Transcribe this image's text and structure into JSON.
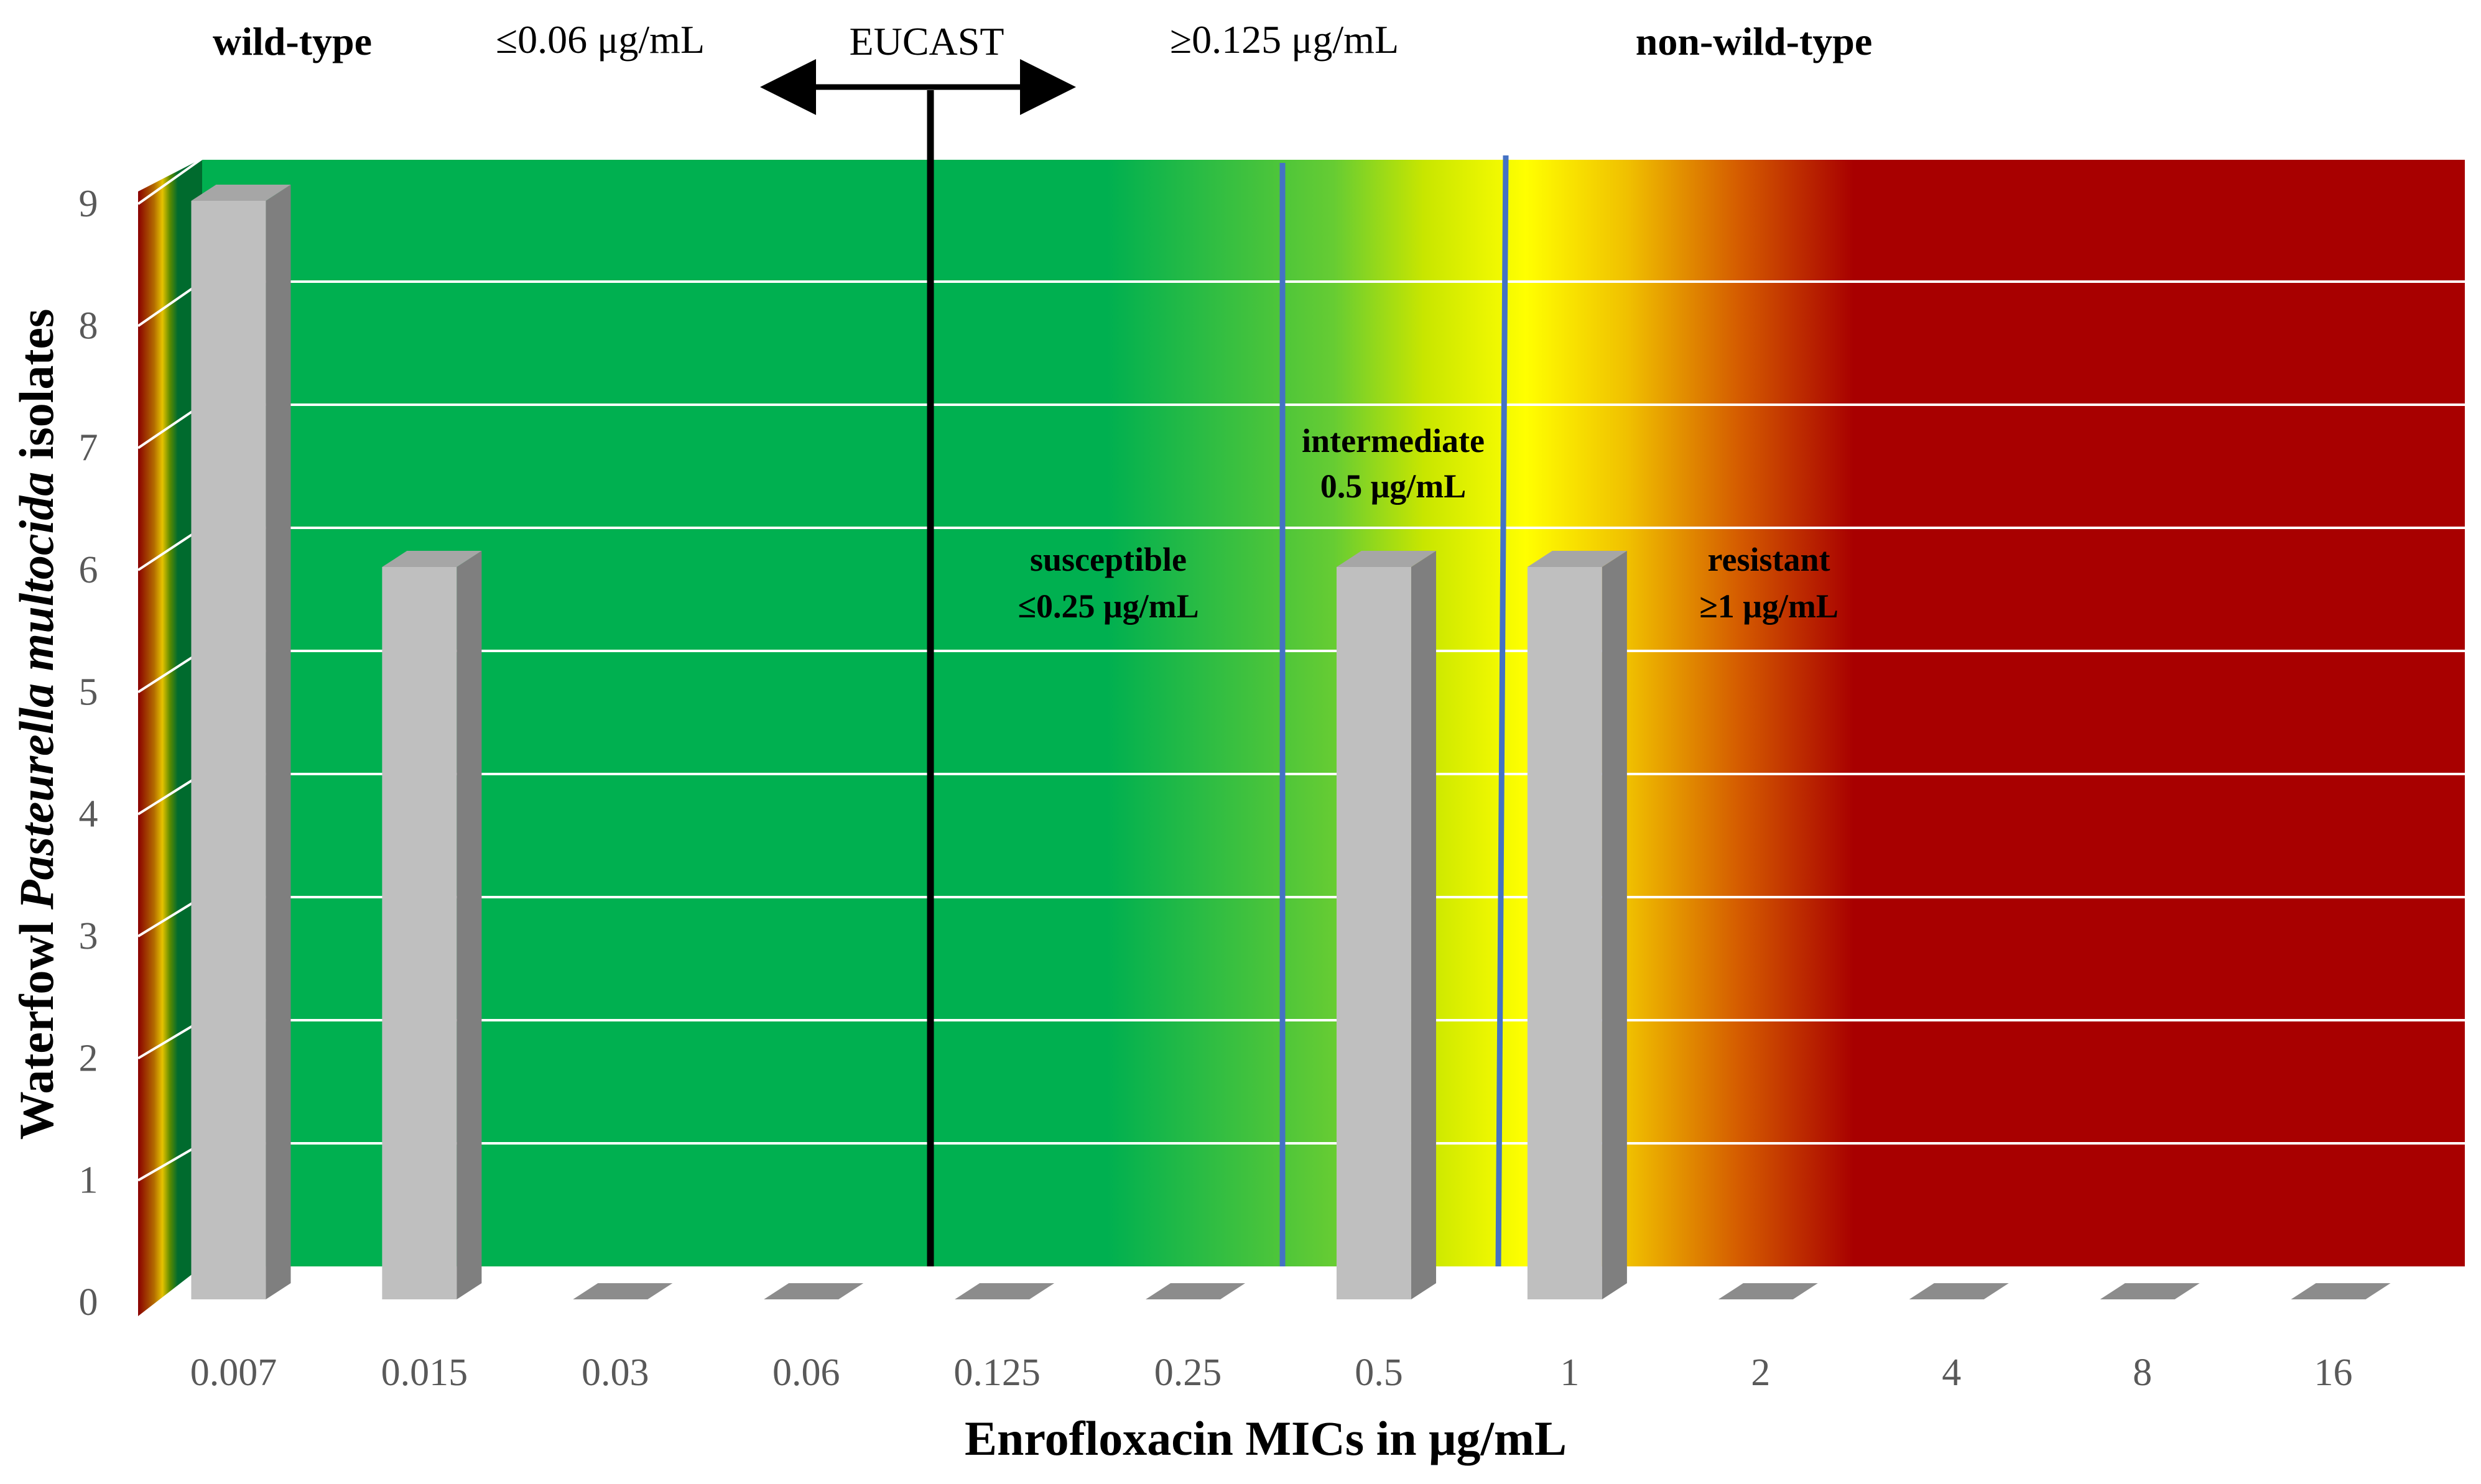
{
  "chart_data": {
    "type": "bar",
    "categories": [
      "0.007",
      "0.015",
      "0.03",
      "0.06",
      "0.125",
      "0.25",
      "0.5",
      "1",
      "2",
      "4",
      "8",
      "16"
    ],
    "values": [
      9,
      6,
      0,
      0,
      0,
      0,
      6,
      6,
      0,
      0,
      0,
      0
    ],
    "ylim": [
      0,
      9
    ],
    "yticks": [
      "0",
      "1",
      "2",
      "3",
      "4",
      "5",
      "6",
      "7",
      "8",
      "9"
    ],
    "xlabel": "Enrofloxacin MICs in μg/mL",
    "ylabel_parts": [
      "Waterfowl ",
      "Pasteurella multocida",
      " isolates"
    ],
    "colors": {
      "bar_front": "#bfbfbf",
      "bar_side": "#7f7f7f",
      "green": "#00b050",
      "yellow": "#ffff00",
      "red": "#a80000",
      "breakpoint_line": "#4472c4",
      "eucast_line": "#000000",
      "gridline": "#ffffff"
    },
    "header": {
      "wild_type": "wild-type",
      "wt_cutoff": "≤0.06 μg/mL",
      "eucast": "EUCAST",
      "nwt_cutoff": "≥0.125 μg/mL",
      "non_wild_type": "non-wild-type"
    },
    "zones": {
      "susceptible": {
        "label": "susceptible",
        "value": "≤0.25 μg/mL"
      },
      "intermediate": {
        "label": "intermediate",
        "value": "0.5 μg/mL"
      },
      "resistant": {
        "label": "resistant",
        "value": "≥1 μg/mL"
      }
    }
  }
}
